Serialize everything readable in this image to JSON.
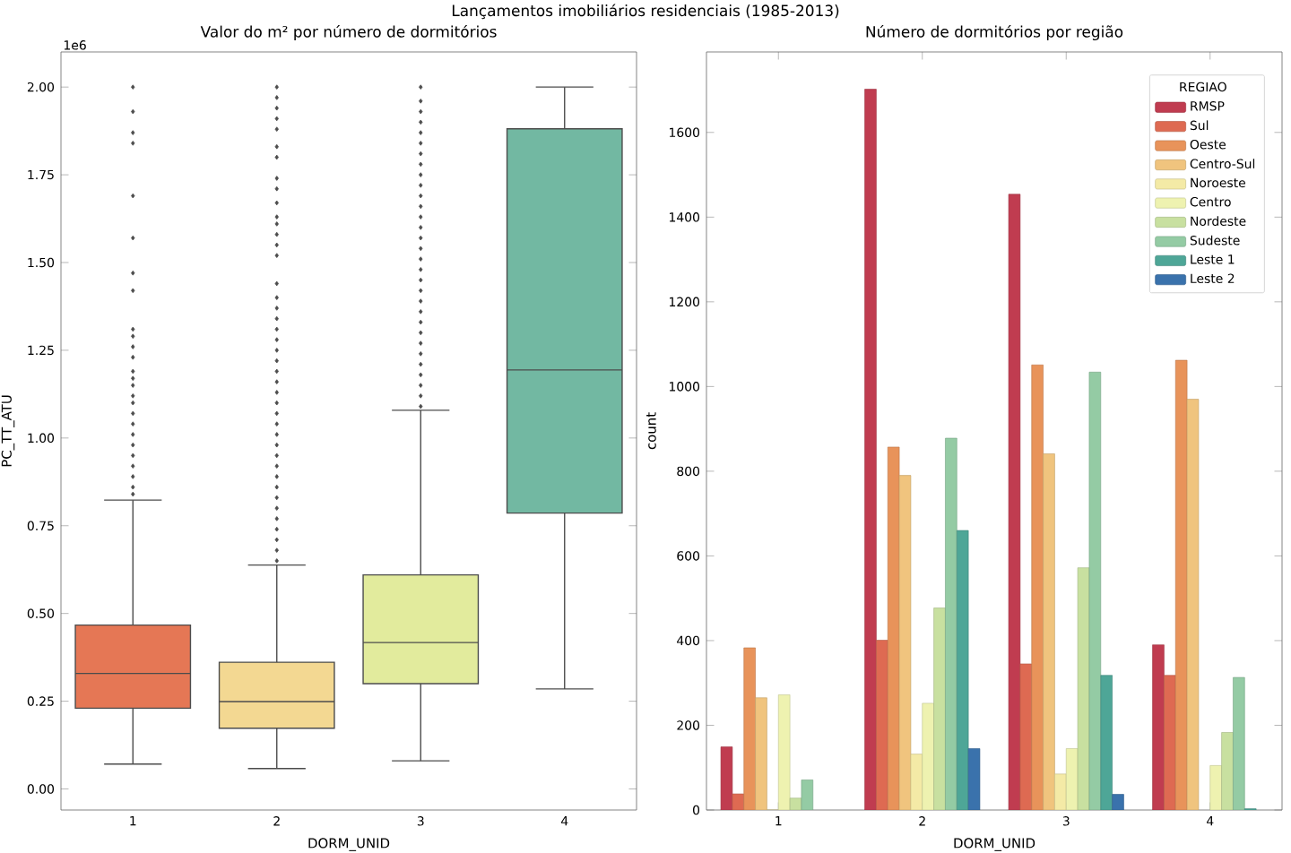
{
  "chart_data": [
    {
      "type": "box",
      "title": "Valor do m² por número de dormitórios",
      "xlabel": "DORM_UNID",
      "ylabel": "PC_TT_ATU",
      "annotations": [
        "1e6",
        "Lançamentos imobiliários residenciais (1985-2013)"
      ],
      "categories": [
        "1",
        "2",
        "3",
        "4"
      ],
      "colors": [
        "#e57755",
        "#f3d892",
        "#e2eb9d",
        "#72b8a2"
      ],
      "marker": "diamond",
      "boxes": [
        {
          "low": 0.071,
          "q1": 0.23,
          "median": 0.329,
          "q3": 0.467,
          "high": 0.823,
          "outliers": [
            0.84,
            0.86,
            0.89,
            0.92,
            0.95,
            0.98,
            1.01,
            1.04,
            1.07,
            1.1,
            1.12,
            1.15,
            1.17,
            1.19,
            1.23,
            1.26,
            1.29,
            1.31,
            1.42,
            1.47,
            1.57,
            1.69,
            1.84,
            1.87,
            1.93,
            2.0
          ]
        },
        {
          "low": 0.058,
          "q1": 0.173,
          "median": 0.249,
          "q3": 0.361,
          "high": 0.638,
          "outliers": [
            0.65,
            0.68,
            0.71,
            0.74,
            0.77,
            0.8,
            0.83,
            0.86,
            0.89,
            0.92,
            0.95,
            0.98,
            1.01,
            1.04,
            1.07,
            1.1,
            1.13,
            1.16,
            1.19,
            1.22,
            1.25,
            1.28,
            1.31,
            1.34,
            1.37,
            1.4,
            1.44,
            1.52,
            1.55,
            1.58,
            1.61,
            1.63,
            1.67,
            1.71,
            1.74,
            1.8,
            1.83,
            1.88,
            1.91,
            1.94,
            1.97,
            2.0
          ]
        },
        {
          "low": 0.08,
          "q1": 0.3,
          "median": 0.417,
          "q3": 0.61,
          "high": 1.079,
          "outliers": [
            1.09,
            1.12,
            1.15,
            1.18,
            1.21,
            1.24,
            1.27,
            1.3,
            1.33,
            1.36,
            1.39,
            1.42,
            1.45,
            1.48,
            1.51,
            1.54,
            1.57,
            1.6,
            1.63,
            1.66,
            1.69,
            1.72,
            1.75,
            1.78,
            1.81,
            1.84,
            1.87,
            1.9,
            1.93,
            1.96,
            2.0
          ]
        },
        {
          "low": 0.285,
          "q1": 0.786,
          "median": 1.194,
          "q3": 1.881,
          "high": 2.0
        }
      ],
      "ylim": [
        -0.06,
        2.1
      ],
      "yticks": [
        {
          "value": 0,
          "label": "0.00"
        },
        {
          "value": 0.25,
          "label": "0.25"
        },
        {
          "value": 0.5,
          "label": "0.50"
        },
        {
          "value": 0.75,
          "label": "0.75"
        },
        {
          "value": 1,
          "label": "1.00"
        },
        {
          "value": 1.25,
          "label": "1.25"
        },
        {
          "value": 1.5,
          "label": "1.50"
        },
        {
          "value": 1.75,
          "label": "1.75"
        },
        {
          "value": 2,
          "label": "2.00"
        }
      ]
    },
    {
      "type": "bar",
      "title": "Número de dormitórios por região",
      "xlabel": "DORM_UNID",
      "ylabel": "count",
      "legend_title": "REGIAO",
      "legend": "top right",
      "categories": [
        "1",
        "2",
        "3",
        "4"
      ],
      "series": [
        {
          "name": "RMSP",
          "color": "#c03c50",
          "values": [
            149,
            1702,
            1454,
            390
          ]
        },
        {
          "name": "Sul",
          "color": "#de6a52",
          "values": [
            38,
            401,
            345,
            318
          ]
        },
        {
          "name": "Oeste",
          "color": "#e8935a",
          "values": [
            383,
            857,
            1051,
            1062
          ]
        },
        {
          "name": "Centro-Sul",
          "color": "#f0c47e",
          "values": [
            265,
            790,
            841,
            970
          ]
        },
        {
          "name": "Noroeste",
          "color": "#f4eaa6",
          "values": [
            0,
            132,
            85,
            null
          ]
        },
        {
          "name": "Centro",
          "color": "#eef2b0",
          "values": [
            272,
            252,
            145,
            105
          ]
        },
        {
          "name": "Nordeste",
          "color": "#c8e0a0",
          "values": [
            28,
            477,
            572,
            183
          ]
        },
        {
          "name": "Sudeste",
          "color": "#94cba4",
          "values": [
            71,
            878,
            1034,
            313
          ]
        },
        {
          "name": "Leste 1",
          "color": "#4ea697",
          "values": [
            null,
            660,
            318,
            3
          ]
        },
        {
          "name": "Leste 2",
          "color": "#3a72ac",
          "values": [
            null,
            145,
            37,
            null
          ]
        }
      ],
      "ylim": [
        0,
        1790
      ],
      "yticks": [
        0,
        200,
        400,
        600,
        800,
        1000,
        1200,
        1400,
        1600
      ]
    }
  ]
}
